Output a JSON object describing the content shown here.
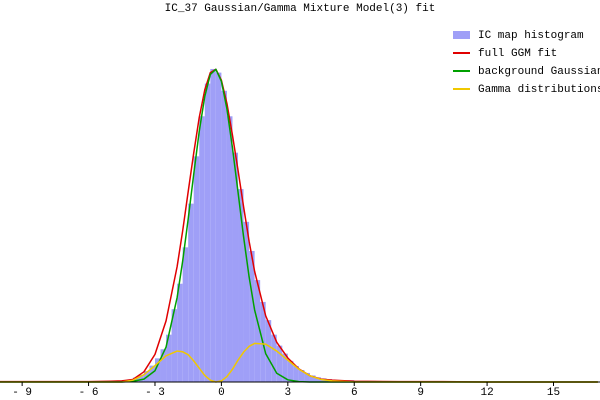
{
  "chart_data": {
    "type": "histogram",
    "title": "IC_37 Gaussian/Gamma Mixture Model(3) fit",
    "histogram": {
      "name": "IC map histogram",
      "color": "#9f9ff7",
      "bins": [
        -10,
        -9,
        -8,
        -7,
        -6,
        -5,
        -4.75,
        -4.5,
        -4.25,
        -4,
        -3.75,
        -3.5,
        -3.25,
        -3,
        -2.75,
        -2.5,
        -2.25,
        -2,
        -1.75,
        -1.5,
        -1.25,
        -1,
        -0.75,
        -0.5,
        -0.25,
        0,
        0.25,
        0.5,
        0.75,
        1,
        1.25,
        1.5,
        1.75,
        2,
        2.25,
        2.5,
        2.75,
        3,
        3.25,
        3.5,
        3.75,
        4,
        4.25,
        4.5,
        4.75,
        5,
        6,
        7,
        8,
        9,
        10,
        11,
        12,
        13,
        14,
        15,
        16,
        17
      ],
      "counts": [
        0.001,
        0.001,
        0.001,
        0.001,
        0.001,
        0.002,
        0.003,
        0.005,
        0.007,
        0.012,
        0.02,
        0.03,
        0.045,
        0.065,
        0.09,
        0.13,
        0.2,
        0.27,
        0.37,
        0.49,
        0.62,
        0.73,
        0.82,
        0.86,
        0.85,
        0.8,
        0.73,
        0.63,
        0.53,
        0.44,
        0.36,
        0.28,
        0.22,
        0.17,
        0.13,
        0.1,
        0.078,
        0.058,
        0.044,
        0.033,
        0.025,
        0.018,
        0.013,
        0.01,
        0.008,
        0.005,
        0.003,
        0.002,
        0.002,
        0.001,
        0.001,
        0.001,
        0.001,
        0.001,
        0.001,
        0.001,
        0.001
      ]
    },
    "x": [
      -10,
      -8,
      -6,
      -5,
      -4.5,
      -4,
      -3.5,
      -3,
      -2.5,
      -2,
      -1.75,
      -1.5,
      -1.25,
      -1,
      -0.75,
      -0.5,
      -0.25,
      0,
      0.25,
      0.5,
      0.75,
      1,
      1.25,
      1.5,
      2,
      2.5,
      3,
      3.5,
      4,
      4.5,
      5,
      6,
      8,
      10,
      12,
      14,
      17
    ],
    "series": [
      {
        "name": "full GGM fit",
        "color": "#e00000",
        "values": [
          0.001,
          0.001,
          0.001,
          0.002,
          0.003,
          0.007,
          0.028,
          0.076,
          0.168,
          0.317,
          0.415,
          0.523,
          0.629,
          0.727,
          0.803,
          0.85,
          0.859,
          0.829,
          0.765,
          0.678,
          0.582,
          0.482,
          0.387,
          0.304,
          0.182,
          0.109,
          0.066,
          0.036,
          0.017,
          0.008,
          0.005,
          0.002,
          0.001,
          0.001,
          0,
          0,
          0
        ]
      },
      {
        "name": "background Gaussian",
        "color": "#00a000",
        "values": [
          0,
          0,
          0,
          0,
          0,
          0.002,
          0.008,
          0.031,
          0.096,
          0.232,
          0.332,
          0.448,
          0.571,
          0.689,
          0.785,
          0.845,
          0.859,
          0.826,
          0.75,
          0.643,
          0.522,
          0.4,
          0.289,
          0.198,
          0.078,
          0.024,
          0.006,
          0.001,
          0,
          0,
          0,
          0,
          0,
          0,
          0,
          0,
          0
        ]
      },
      {
        "name": "Gamma distributions",
        "color": "#f0c800",
        "values": [
          0,
          0,
          0,
          0,
          0,
          0.005,
          0.02,
          0.045,
          0.072,
          0.085,
          0.083,
          0.075,
          0.058,
          0.038,
          0.018,
          0.005,
          0,
          0.003,
          0.015,
          0.035,
          0.06,
          0.082,
          0.098,
          0.106,
          0.104,
          0.085,
          0.06,
          0.035,
          0.017,
          0.007,
          0.003,
          0,
          0,
          0,
          0,
          0,
          0
        ]
      }
    ],
    "xlim": [
      -10,
      17.1
    ],
    "ylim": [
      0,
      1
    ],
    "xticks": [
      {
        "value": -9,
        "label": "- 9"
      },
      {
        "value": -6,
        "label": "- 6"
      },
      {
        "value": -3,
        "label": "- 3"
      },
      0,
      3,
      6,
      9,
      12,
      15
    ],
    "legend": "top-right"
  }
}
